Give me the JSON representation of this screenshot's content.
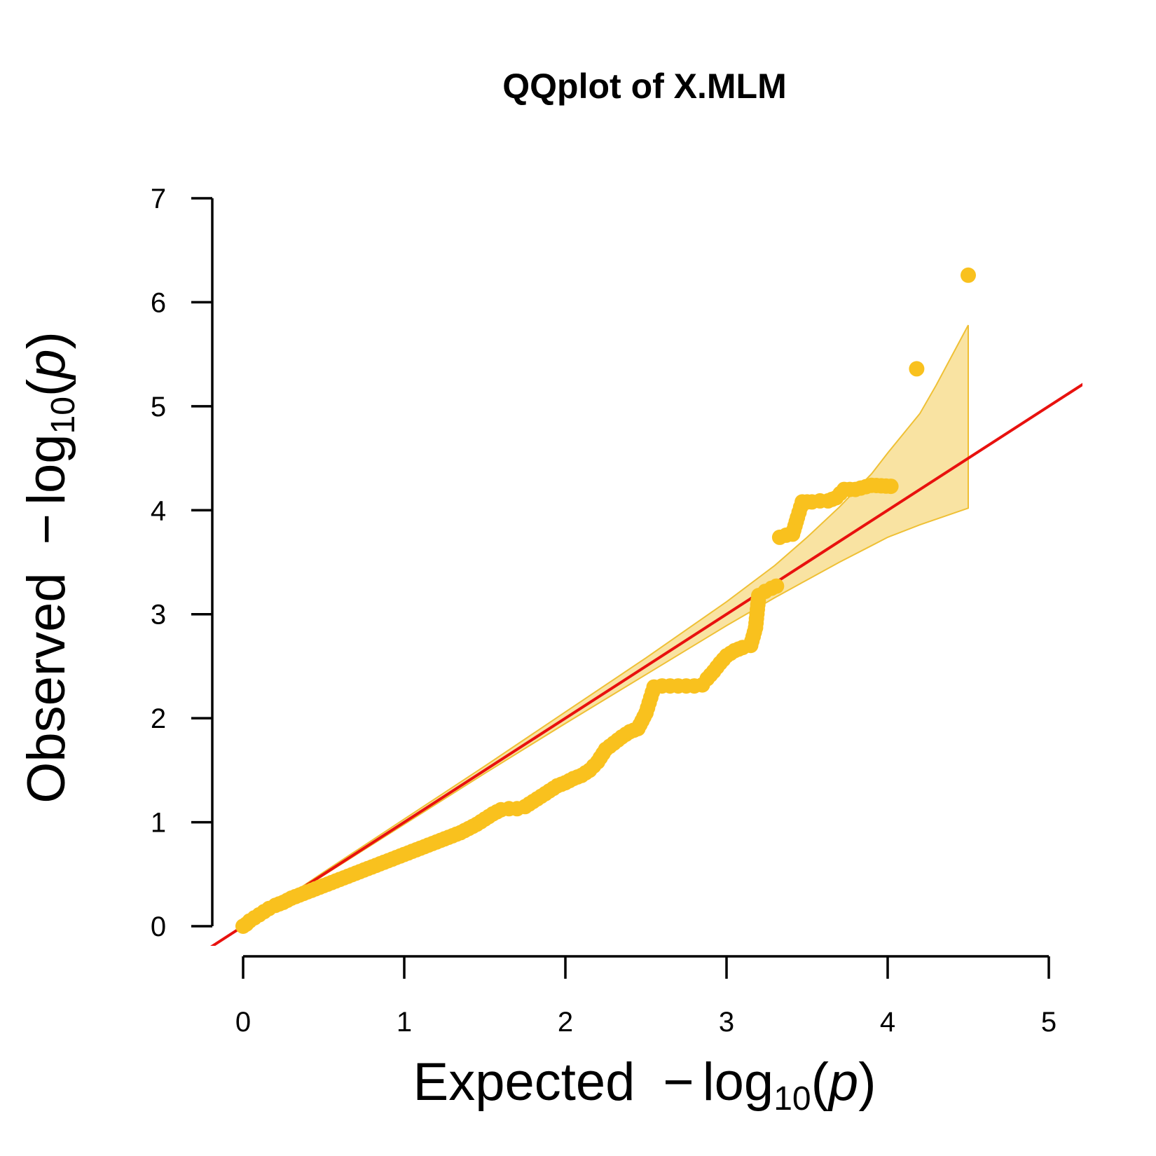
{
  "chart_data": {
    "type": "scatter",
    "title": "QQplot of X.MLM",
    "xlabel": {
      "prefix": "Expected",
      "minus": "−",
      "log": "log",
      "base": "10",
      "open": "(",
      "var": "p",
      "close": ")"
    },
    "ylabel": {
      "prefix": "Observed",
      "minus": "−",
      "log": "log",
      "base": "10",
      "open": "(",
      "var": "p",
      "close": ")"
    },
    "xlim": [
      0,
      5
    ],
    "ylim": [
      0,
      7
    ],
    "xticks": [
      "0",
      "1",
      "2",
      "3",
      "4",
      "5"
    ],
    "yticks": [
      "0",
      "1",
      "2",
      "3",
      "4",
      "5",
      "6",
      "7"
    ],
    "point_color": "#F9C11E",
    "band_color": "#F9E3A2",
    "band_edge_color": "#EFC035",
    "line_color": "#E8110E",
    "reference_line": {
      "slope": 1,
      "intercept": 0
    },
    "confidence_band": {
      "upper": [
        [
          0,
          0
        ],
        [
          0.5,
          0.52
        ],
        [
          1.0,
          1.03
        ],
        [
          1.5,
          1.54
        ],
        [
          2.0,
          2.06
        ],
        [
          2.5,
          2.58
        ],
        [
          3.0,
          3.12
        ],
        [
          3.3,
          3.47
        ],
        [
          3.5,
          3.74
        ],
        [
          3.7,
          4.03
        ],
        [
          3.9,
          4.35
        ],
        [
          4.0,
          4.55
        ],
        [
          4.2,
          4.93
        ],
        [
          4.3,
          5.2
        ],
        [
          4.5,
          5.78
        ]
      ],
      "lower": [
        [
          0,
          0
        ],
        [
          0.5,
          0.49
        ],
        [
          1.0,
          0.98
        ],
        [
          1.5,
          1.47
        ],
        [
          2.0,
          1.95
        ],
        [
          2.5,
          2.42
        ],
        [
          3.0,
          2.89
        ],
        [
          3.3,
          3.16
        ],
        [
          3.5,
          3.33
        ],
        [
          3.7,
          3.5
        ],
        [
          3.9,
          3.66
        ],
        [
          4.0,
          3.74
        ],
        [
          4.2,
          3.86
        ],
        [
          4.5,
          4.02
        ]
      ]
    },
    "points": [
      [
        0.0,
        0.0
      ],
      [
        0.02,
        0.02
      ],
      [
        0.04,
        0.05
      ],
      [
        0.07,
        0.08
      ],
      [
        0.1,
        0.11
      ],
      [
        0.13,
        0.14
      ],
      [
        0.16,
        0.17
      ],
      [
        0.2,
        0.2
      ],
      [
        0.25,
        0.23
      ],
      [
        0.3,
        0.27
      ],
      [
        0.35,
        0.3
      ],
      [
        0.4,
        0.33
      ],
      [
        0.45,
        0.36
      ],
      [
        0.5,
        0.39
      ],
      [
        0.55,
        0.42
      ],
      [
        0.6,
        0.45
      ],
      [
        0.65,
        0.48
      ],
      [
        0.7,
        0.51
      ],
      [
        0.75,
        0.54
      ],
      [
        0.8,
        0.57
      ],
      [
        0.85,
        0.6
      ],
      [
        0.9,
        0.63
      ],
      [
        0.95,
        0.66
      ],
      [
        1.0,
        0.69
      ],
      [
        1.05,
        0.72
      ],
      [
        1.1,
        0.75
      ],
      [
        1.15,
        0.78
      ],
      [
        1.2,
        0.81
      ],
      [
        1.25,
        0.84
      ],
      [
        1.3,
        0.87
      ],
      [
        1.35,
        0.9
      ],
      [
        1.4,
        0.94
      ],
      [
        1.45,
        0.98
      ],
      [
        1.5,
        1.03
      ],
      [
        1.55,
        1.08
      ],
      [
        1.6,
        1.12
      ],
      [
        1.65,
        1.13
      ],
      [
        1.7,
        1.13
      ],
      [
        1.75,
        1.15
      ],
      [
        1.8,
        1.2
      ],
      [
        1.85,
        1.25
      ],
      [
        1.9,
        1.3
      ],
      [
        1.95,
        1.35
      ],
      [
        2.0,
        1.38
      ],
      [
        2.05,
        1.42
      ],
      [
        2.1,
        1.45
      ],
      [
        2.15,
        1.5
      ],
      [
        2.2,
        1.58
      ],
      [
        2.25,
        1.7
      ],
      [
        2.3,
        1.76
      ],
      [
        2.35,
        1.82
      ],
      [
        2.4,
        1.87
      ],
      [
        2.45,
        1.9
      ],
      [
        2.5,
        2.05
      ],
      [
        2.53,
        2.2
      ],
      [
        2.55,
        2.3
      ],
      [
        2.6,
        2.31
      ],
      [
        2.65,
        2.31
      ],
      [
        2.7,
        2.31
      ],
      [
        2.75,
        2.31
      ],
      [
        2.8,
        2.31
      ],
      [
        2.85,
        2.32
      ],
      [
        2.88,
        2.38
      ],
      [
        2.92,
        2.45
      ],
      [
        2.96,
        2.53
      ],
      [
        3.0,
        2.6
      ],
      [
        3.05,
        2.65
      ],
      [
        3.1,
        2.68
      ],
      [
        3.15,
        2.7
      ],
      [
        3.18,
        2.87
      ],
      [
        3.2,
        3.18
      ],
      [
        3.24,
        3.22
      ],
      [
        3.28,
        3.25
      ],
      [
        3.31,
        3.27
      ],
      [
        3.33,
        3.74
      ],
      [
        3.37,
        3.76
      ],
      [
        3.41,
        3.77
      ],
      [
        3.44,
        3.93
      ],
      [
        3.47,
        4.08
      ],
      [
        3.53,
        4.08
      ],
      [
        3.58,
        4.09
      ],
      [
        3.63,
        4.09
      ],
      [
        3.68,
        4.12
      ],
      [
        3.73,
        4.2
      ],
      [
        3.8,
        4.2
      ],
      [
        3.9,
        4.24
      ],
      [
        4.02,
        4.23
      ],
      [
        4.18,
        5.36
      ],
      [
        4.5,
        6.26
      ]
    ]
  }
}
